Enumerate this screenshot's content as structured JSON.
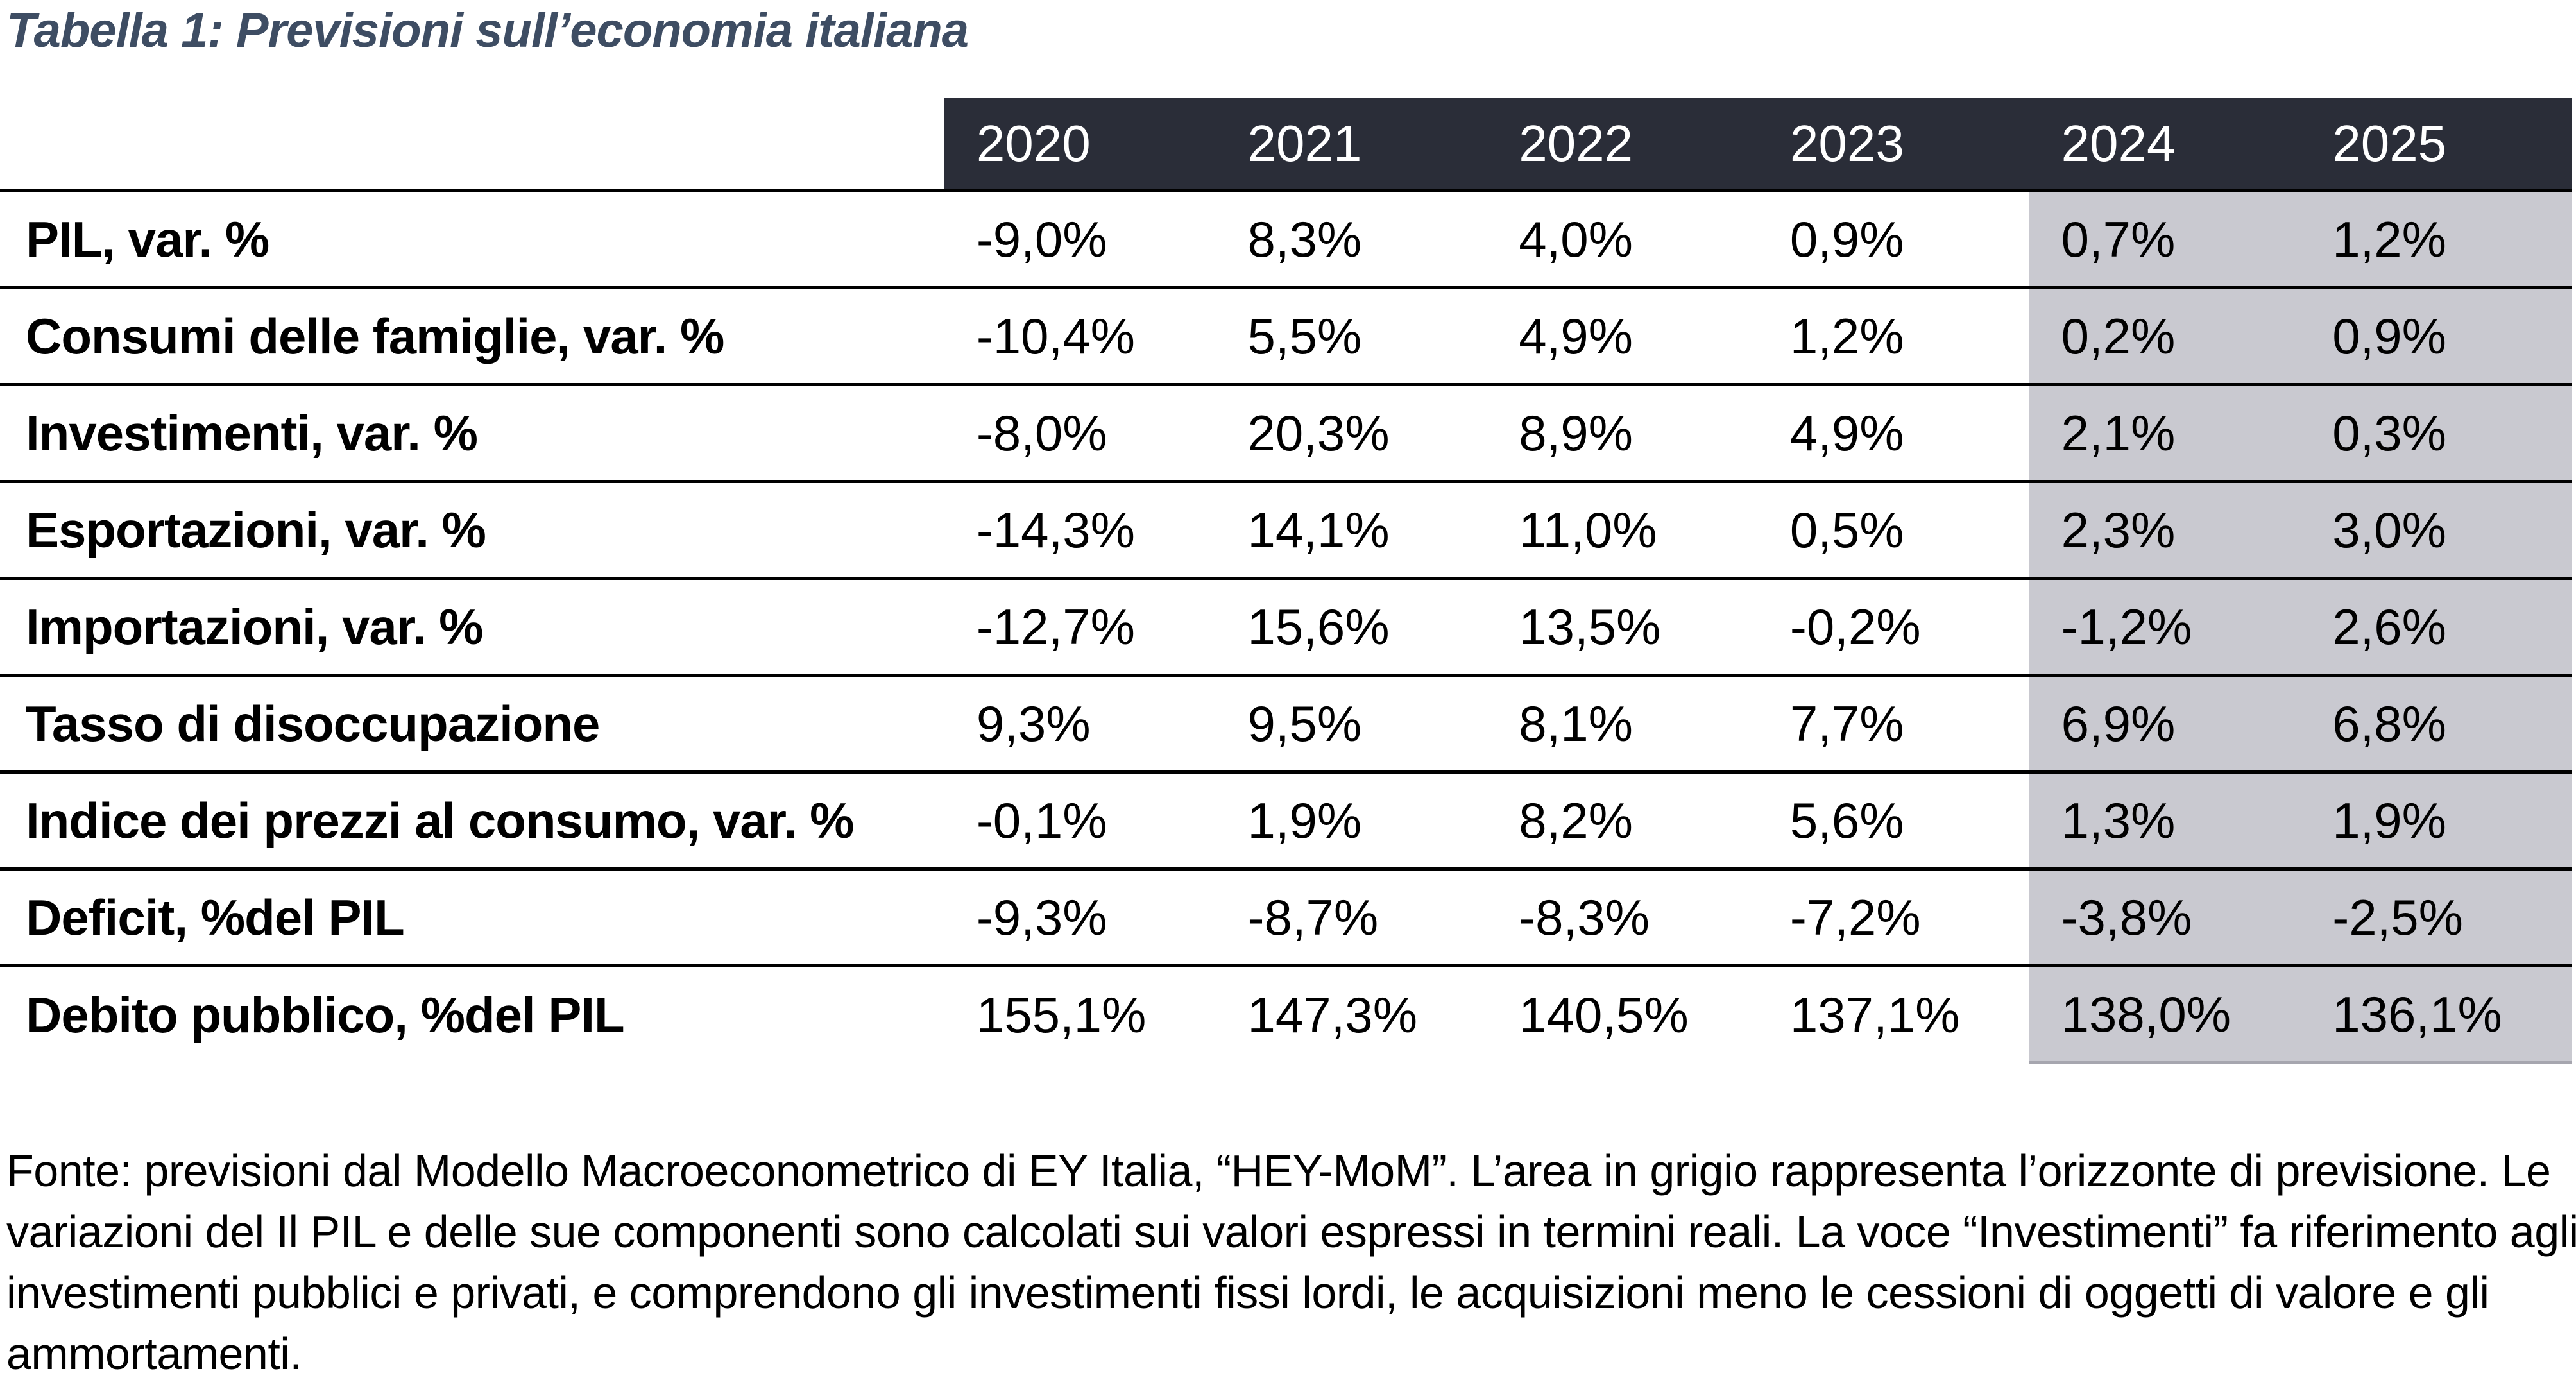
{
  "title": "Tabella 1: Previsioni sull’economia italiana",
  "table": {
    "corner": "",
    "years": [
      "2020",
      "2021",
      "2022",
      "2023",
      "2024",
      "2025"
    ],
    "forecast_years": [
      "2024",
      "2025"
    ],
    "rows": [
      {
        "label": "PIL, var. %",
        "values": [
          "-9,0%",
          "8,3%",
          "4,0%",
          "0,9%",
          "0,7%",
          "1,2%"
        ]
      },
      {
        "label": "Consumi delle famiglie, var. %",
        "values": [
          "-10,4%",
          "5,5%",
          "4,9%",
          "1,2%",
          "0,2%",
          "0,9%"
        ]
      },
      {
        "label": "Investimenti, var. %",
        "values": [
          "-8,0%",
          "20,3%",
          "8,9%",
          "4,9%",
          "2,1%",
          "0,3%"
        ]
      },
      {
        "label": "Esportazioni, var. %",
        "values": [
          "-14,3%",
          "14,1%",
          "11,0%",
          "0,5%",
          "2,3%",
          "3,0%"
        ]
      },
      {
        "label": "Importazioni, var. %",
        "values": [
          "-12,7%",
          "15,6%",
          "13,5%",
          "-0,2%",
          "-1,2%",
          "2,6%"
        ]
      },
      {
        "label": "Tasso di disoccupazione",
        "values": [
          "9,3%",
          "9,5%",
          "8,1%",
          "7,7%",
          "6,9%",
          "6,8%"
        ]
      },
      {
        "label": "Indice dei prezzi al consumo, var. %",
        "values": [
          "-0,1%",
          "1,9%",
          "8,2%",
          "5,6%",
          "1,3%",
          "1,9%"
        ]
      },
      {
        "label": "Deficit, %del PIL",
        "values": [
          "-9,3%",
          "-8,7%",
          "-8,3%",
          "-7,2%",
          "-3,8%",
          "-2,5%"
        ]
      },
      {
        "label": "Debito pubblico, %del PIL",
        "values": [
          "155,1%",
          "147,3%",
          "140,5%",
          "137,1%",
          "138,0%",
          "136,1%"
        ]
      }
    ]
  },
  "footer": {
    "lines": [
      "Fonte: previsioni dal Modello Macroeconometrico di EY Italia, “HEY-MoM”. L’area in grigio rappresenta l’orizzonte di previsione. Le",
      "variazioni del Il PIL e delle sue componenti sono calcolati sui valori espressi in termini reali. La voce “Investimenti” fa riferimento agli",
      "investimenti pubblici e privati, e comprendono gli investimenti fissi lordi, le acquisizioni meno le cessioni di oggetti di valore e gli",
      "ammortamenti."
    ]
  },
  "colors": {
    "header_bg": "#2A2D38",
    "header_text": "#FFFFFF",
    "forecast_bg": "#C9C9D0",
    "title_text": "#3E4D63",
    "rule": "#000000"
  }
}
